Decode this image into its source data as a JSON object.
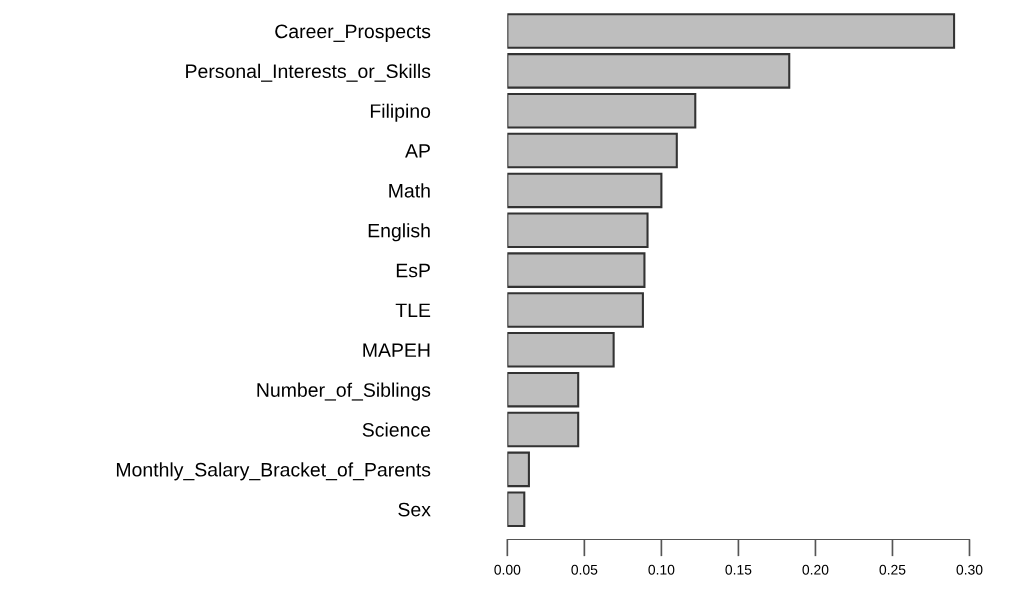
{
  "chart_data": {
    "type": "bar",
    "orientation": "horizontal",
    "categories": [
      "Career_Prospects",
      "Personal_Interests_or_Skills",
      "Filipino",
      "AP",
      "Math",
      "English",
      "EsP",
      "TLE",
      "MAPEH",
      "Number_of_Siblings",
      "Science",
      "Monthly_Salary_Bracket_of_Parents",
      "Sex"
    ],
    "values": [
      0.29,
      0.183,
      0.122,
      0.11,
      0.1,
      0.091,
      0.089,
      0.088,
      0.069,
      0.046,
      0.046,
      0.014,
      0.011
    ],
    "color": "#bebebe",
    "xlim": [
      0,
      0.3
    ],
    "xticks": [
      {
        "value": 0,
        "label": "0.00"
      },
      {
        "value": 0.05,
        "label": "0.05"
      },
      {
        "value": 0.1,
        "label": "0.10"
      },
      {
        "value": 0.15,
        "label": "0.15"
      },
      {
        "value": 0.2,
        "label": "0.20"
      },
      {
        "value": 0.25,
        "label": "0.25"
      },
      {
        "value": 0.3,
        "label": "0.30"
      }
    ],
    "grid": false
  }
}
